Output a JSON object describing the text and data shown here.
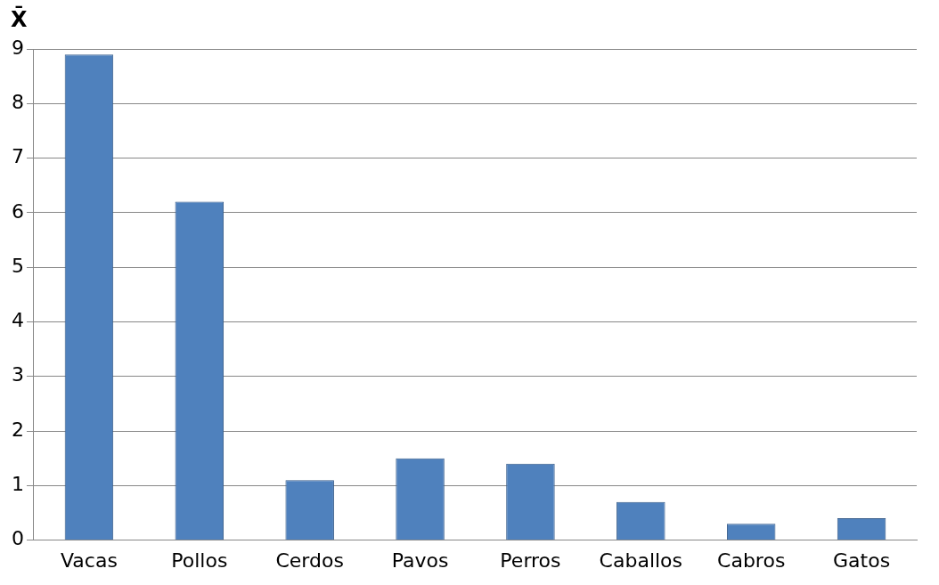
{
  "chart_data": {
    "type": "bar",
    "ylabel": "X̄",
    "categories": [
      "Vacas",
      "Pollos",
      "Cerdos",
      "Pavos",
      "Perros",
      "Caballos",
      "Cabros",
      "Gatos"
    ],
    "values": [
      8.9,
      6.2,
      1.1,
      1.5,
      1.4,
      0.7,
      0.3,
      0.4
    ],
    "color": "#4f81bd",
    "ylim": [
      0,
      9
    ],
    "yticks": [
      0,
      1,
      2,
      3,
      4,
      5,
      6,
      7,
      8,
      9
    ],
    "grid": "y",
    "legend": false
  }
}
